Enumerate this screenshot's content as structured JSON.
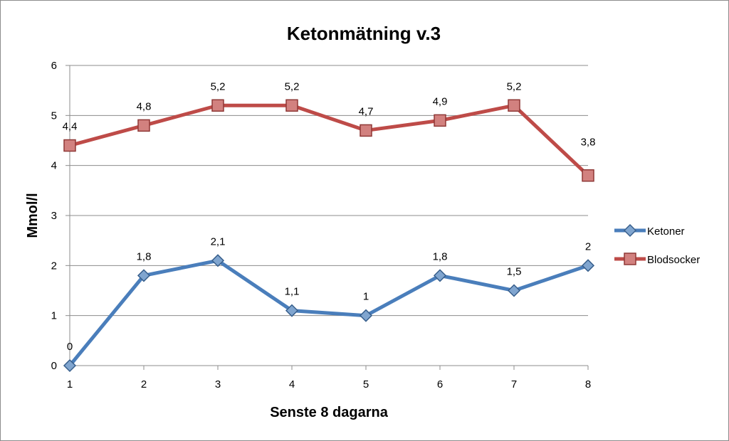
{
  "chart_data": {
    "type": "line",
    "title": "Ketonmätning v.3",
    "xlabel": "Senste 8 dagarna",
    "ylabel": "Mmol/l",
    "categories": [
      "1",
      "2",
      "3",
      "4",
      "5",
      "6",
      "7",
      "8"
    ],
    "ylim": [
      0,
      6
    ],
    "yticks": [
      "0",
      "1",
      "2",
      "3",
      "4",
      "5",
      "6"
    ],
    "grid": true,
    "legend_position": "right",
    "series": [
      {
        "name": "Ketoner",
        "values": [
          0,
          1.8,
          2.1,
          1.1,
          1,
          1.8,
          1.5,
          2
        ],
        "labels": [
          "0",
          "1,8",
          "2,1",
          "1,1",
          "1",
          "1,8",
          "1,5",
          "2"
        ],
        "color": "#4a7ebb",
        "marker": "diamond"
      },
      {
        "name": "Blodsocker",
        "values": [
          4.4,
          4.8,
          5.2,
          5.2,
          4.7,
          4.9,
          5.2,
          3.8
        ],
        "labels": [
          "4,4",
          "4,8",
          "5,2",
          "5,2",
          "4,7",
          "4,9",
          "5,2",
          "3,8"
        ],
        "color": "#be4b48",
        "marker": "square"
      }
    ]
  }
}
